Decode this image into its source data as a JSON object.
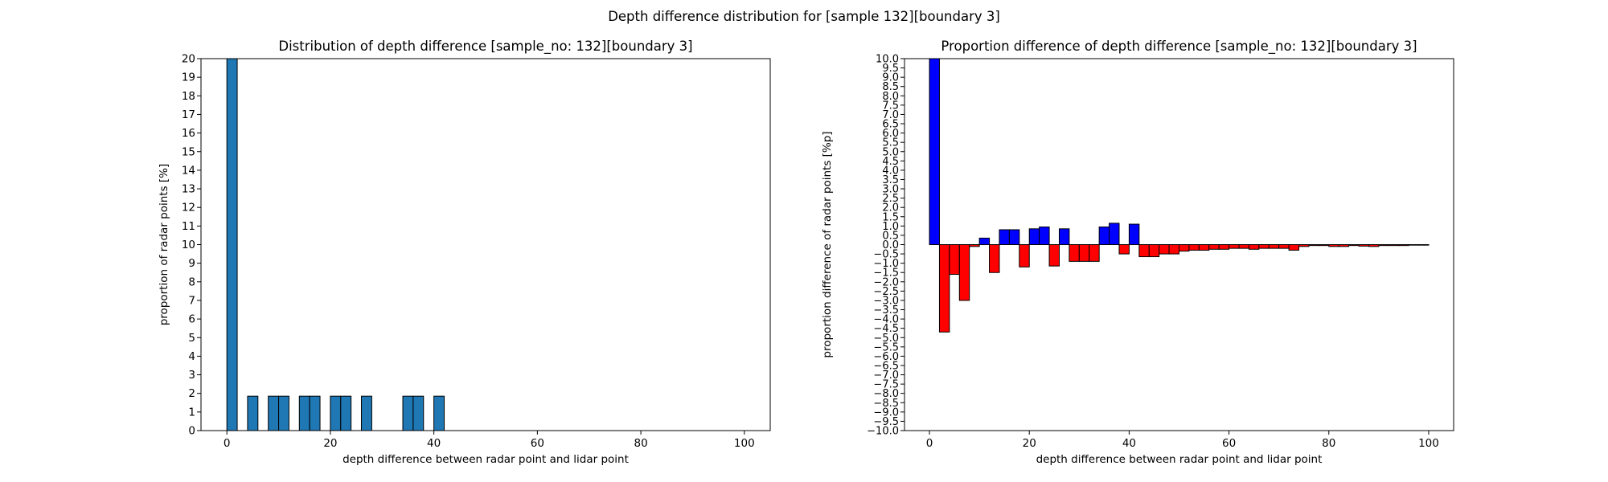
{
  "figure": {
    "suptitle": "Depth difference distribution for [sample 132][boundary 3]"
  },
  "chart_data": [
    {
      "type": "bar",
      "title": "Distribution of depth difference [sample_no: 132][boundary 3]",
      "xlabel": "depth difference between radar point and lidar point",
      "ylabel": "proportion of radar points [%]",
      "xlim": [
        -5,
        105
      ],
      "ylim": [
        0,
        20
      ],
      "x_ticks": [
        0,
        20,
        40,
        60,
        80,
        100
      ],
      "y_ticks": [
        0,
        1,
        2,
        3,
        4,
        5,
        6,
        7,
        8,
        9,
        10,
        11,
        12,
        13,
        14,
        15,
        16,
        17,
        18,
        19,
        20
      ],
      "bar_width": 2,
      "grid": false,
      "colors": {
        "bar": "#1f77b4",
        "edge": "#000000"
      },
      "x": [
        1,
        5,
        9,
        11,
        15,
        17,
        21,
        23,
        27,
        35,
        37,
        41
      ],
      "values": [
        20,
        1.85,
        1.85,
        1.85,
        1.85,
        1.85,
        1.85,
        1.85,
        1.85,
        1.85,
        1.85,
        1.85
      ]
    },
    {
      "type": "bar",
      "title": "Proportion difference of depth difference [sample_no: 132][boundary 3]",
      "xlabel": "depth difference between radar point and lidar point",
      "ylabel": "proportion difference of radar points [%p]",
      "xlim": [
        -5,
        105
      ],
      "ylim": [
        -10,
        10
      ],
      "x_ticks": [
        0,
        20,
        40,
        60,
        80,
        100
      ],
      "y_ticks": [
        -10,
        -9.5,
        -9,
        -8.5,
        -8,
        -7.5,
        -7,
        -6.5,
        -6,
        -5.5,
        -5,
        -4.5,
        -4,
        -3.5,
        -3,
        -2.5,
        -2,
        -1.5,
        -1,
        -0.5,
        0,
        0.5,
        1,
        1.5,
        2,
        2.5,
        3,
        3.5,
        4,
        4.5,
        5,
        5.5,
        6,
        6.5,
        7,
        7.5,
        8,
        8.5,
        9,
        9.5,
        10
      ],
      "bar_width": 2,
      "grid": false,
      "colors": {
        "positive": "#0000ff",
        "negative": "#ff0000",
        "edge": "#000000"
      },
      "x": [
        1,
        3,
        5,
        7,
        9,
        11,
        13,
        15,
        17,
        19,
        21,
        23,
        25,
        27,
        29,
        31,
        33,
        35,
        37,
        39,
        41,
        43,
        45,
        47,
        49,
        51,
        53,
        55,
        57,
        59,
        61,
        63,
        65,
        67,
        69,
        71,
        73,
        75,
        77,
        79,
        81,
        83,
        85,
        87,
        89,
        91,
        93,
        95,
        97,
        99
      ],
      "values": [
        10,
        -4.7,
        -1.6,
        -3.0,
        -0.1,
        0.35,
        -1.5,
        0.8,
        0.8,
        -1.2,
        0.85,
        0.95,
        -1.15,
        0.85,
        -0.9,
        -0.9,
        -0.9,
        0.95,
        1.15,
        -0.5,
        1.1,
        -0.65,
        -0.65,
        -0.5,
        -0.5,
        -0.35,
        -0.3,
        -0.3,
        -0.25,
        -0.25,
        -0.2,
        -0.2,
        -0.25,
        -0.2,
        -0.2,
        -0.2,
        -0.3,
        -0.1,
        -0.05,
        -0.05,
        -0.1,
        -0.1,
        -0.05,
        -0.08,
        -0.1,
        -0.05,
        -0.05,
        -0.05,
        -0.03,
        -0.03
      ]
    }
  ]
}
